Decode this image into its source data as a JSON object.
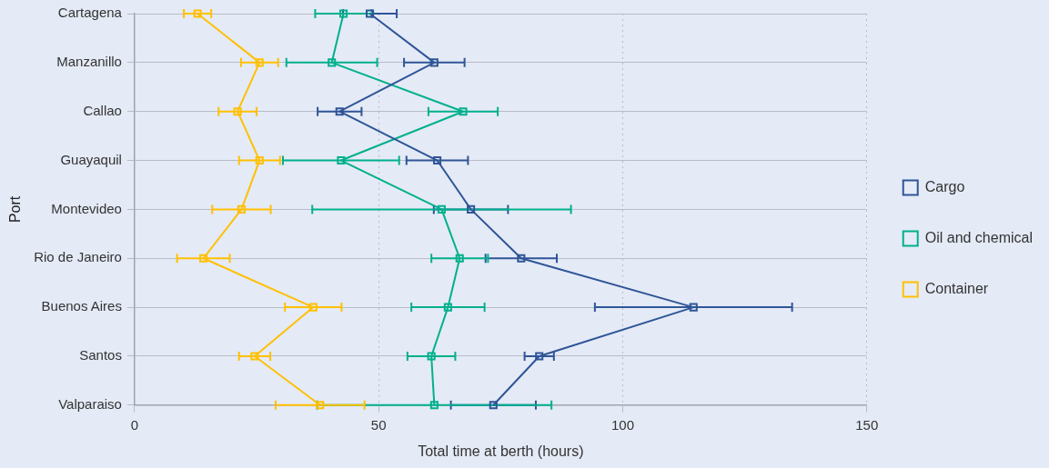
{
  "chart_data": {
    "type": "line",
    "orientation": "horizontal",
    "xlabel": "Total time at berth (hours)",
    "ylabel": "Port",
    "categories": [
      "Cartagena",
      "Manzanillo",
      "Callao",
      "Guayaquil",
      "Montevideo",
      "Rio de Janeiro",
      "Buenos Aires",
      "Santos",
      "Valparaiso"
    ],
    "series": [
      {
        "name": "Cargo",
        "color": "#2f5597",
        "values": [
          48.2,
          61.4,
          42,
          62,
          68.9,
          79.2,
          114.5,
          82.9,
          73.5
        ],
        "errors": [
          5.5,
          6.2,
          4.5,
          6.3,
          7.6,
          7.3,
          20.2,
          3,
          8.7
        ]
      },
      {
        "name": "Oil and chemical",
        "color": "#00b08c",
        "values": [
          42.8,
          40.4,
          67.3,
          42.3,
          62.9,
          66.6,
          64.2,
          60.8,
          61.4
        ],
        "errors": [
          5.8,
          9.3,
          7.1,
          11.9,
          26.5,
          5.8,
          7.5,
          4.9,
          24
        ]
      },
      {
        "name": "Container",
        "color": "#ffc000",
        "values": [
          12.9,
          25.6,
          21.1,
          25.6,
          21.9,
          14.1,
          36.6,
          24.6,
          38
        ],
        "errors": [
          2.8,
          3.8,
          3.9,
          4.2,
          6,
          5.4,
          5.8,
          3.2,
          9.1
        ]
      }
    ],
    "xlim": [
      0,
      150
    ],
    "xticks": [
      0,
      50,
      100,
      150
    ],
    "grid": true,
    "legend": "right",
    "marker": "square",
    "line_style": "solid"
  }
}
